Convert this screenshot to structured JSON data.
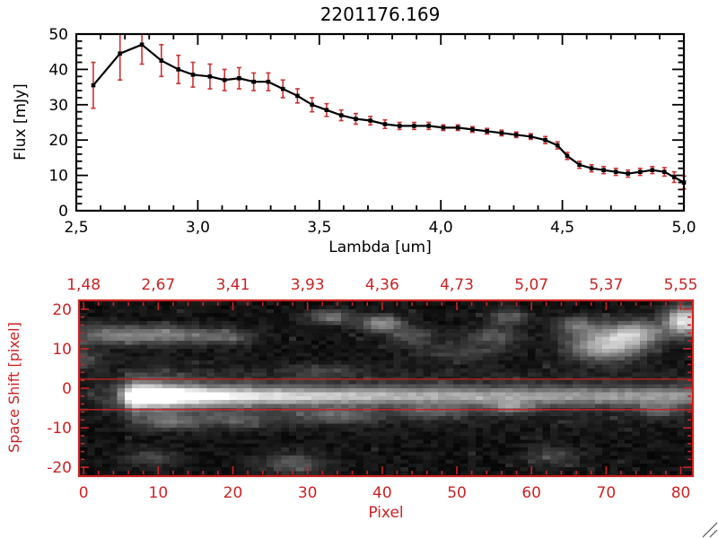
{
  "chart_data": [
    {
      "type": "line",
      "title": "2201176.169",
      "xlabel": "Lambda [um]",
      "ylabel": "Flux [mJy]",
      "xlim": [
        2.5,
        5.0
      ],
      "ylim": [
        0,
        50
      ],
      "xtick_values": [
        2.5,
        3.0,
        3.5,
        4.0,
        4.5,
        5.0
      ],
      "xtick_labels": [
        "2,5",
        "3,0",
        "3,5",
        "4,0",
        "4,5",
        "5,0"
      ],
      "ytick_values": [
        0,
        10,
        20,
        30,
        40,
        50
      ],
      "ytick_labels": [
        "0",
        "10",
        "20",
        "30",
        "40",
        "50"
      ],
      "line_color": "#000000",
      "marker": "square",
      "error_color": "#cc3333",
      "x": [
        2.57,
        2.68,
        2.77,
        2.85,
        2.92,
        2.98,
        3.05,
        3.11,
        3.17,
        3.23,
        3.29,
        3.35,
        3.41,
        3.47,
        3.53,
        3.59,
        3.65,
        3.71,
        3.77,
        3.83,
        3.89,
        3.95,
        4.01,
        4.07,
        4.13,
        4.19,
        4.25,
        4.31,
        4.37,
        4.43,
        4.48,
        4.52,
        4.57,
        4.62,
        4.67,
        4.72,
        4.77,
        4.82,
        4.87,
        4.92,
        4.96,
        5.0
      ],
      "y": [
        35.5,
        44.5,
        47,
        42.5,
        40,
        38.5,
        38,
        37,
        37.5,
        36.5,
        36.5,
        34.5,
        32.5,
        30,
        28.5,
        27,
        26,
        25.5,
        24.5,
        24,
        24,
        24,
        23.5,
        23.5,
        23,
        22.5,
        22,
        21.5,
        21,
        20,
        18.5,
        15.5,
        13,
        12,
        11.5,
        11,
        10.5,
        11,
        11.5,
        11,
        9.5,
        8
      ],
      "yerr": [
        6.5,
        7.5,
        5.5,
        4.5,
        4,
        3.5,
        3.5,
        3,
        3,
        2.5,
        2.5,
        2.5,
        2,
        2,
        1.8,
        1.5,
        1.5,
        1.2,
        1.2,
        1,
        1,
        1,
        0.8,
        0.8,
        0.8,
        0.8,
        0.8,
        0.8,
        0.8,
        1,
        1,
        1,
        1,
        1,
        1,
        1,
        1,
        1,
        1,
        1.2,
        1.5,
        1.8
      ]
    },
    {
      "type": "heatmap",
      "xlabel": "Pixel",
      "ylabel": "Space Shift [pixel]",
      "axis_color": "#cc2222",
      "xlim": [
        0,
        81
      ],
      "ylim": [
        -22,
        22
      ],
      "xtick_values": [
        0,
        10,
        20,
        30,
        40,
        50,
        60,
        70,
        80
      ],
      "xtick_labels": [
        "0",
        "10",
        "20",
        "30",
        "40",
        "50",
        "60",
        "70",
        "80"
      ],
      "ytick_values": [
        20,
        10,
        0,
        -10,
        -20
      ],
      "ytick_labels": [
        "20",
        "10",
        "0",
        "-10",
        "-20"
      ],
      "top_labels": [
        "1,48",
        "2,67",
        "3,41",
        "3,93",
        "4,36",
        "4,73",
        "5,07",
        "5,37",
        "5,55"
      ],
      "aperture_v": [
        2.3,
        -5.4
      ],
      "noise_seed": 20117,
      "noise_floor": 0.02,
      "noise_amp": 0.1,
      "trace": {
        "x_start": 4.5,
        "ramp": 2.5,
        "v_center": -2,
        "sigma": 1.5,
        "base": 0.4,
        "peak": 0.62,
        "decay": 20,
        "halo": 0.3,
        "halo_sigma_mult": 2.8
      },
      "blobs": [
        [
          3,
          13.5,
          4,
          1.8,
          0.35
        ],
        [
          11,
          13.5,
          4,
          1.6,
          0.4
        ],
        [
          19,
          13,
          3,
          1.5,
          0.28
        ],
        [
          33,
          18,
          2,
          1.3,
          0.4
        ],
        [
          40,
          16.5,
          2,
          1.4,
          0.5
        ],
        [
          44,
          13,
          2.5,
          1.6,
          0.25
        ],
        [
          50,
          9,
          4,
          1.4,
          0.18
        ],
        [
          55,
          13,
          2.5,
          1.8,
          0.28
        ],
        [
          57,
          18,
          2,
          1.4,
          0.3
        ],
        [
          70,
          11,
          3.5,
          2.8,
          0.65
        ],
        [
          74,
          14,
          2.5,
          2.2,
          0.55
        ],
        [
          80.5,
          17,
          1.8,
          2.5,
          0.85
        ],
        [
          66,
          16,
          2,
          1.5,
          0.35
        ],
        [
          12,
          -8.5,
          3,
          1.4,
          0.28
        ],
        [
          21,
          -8,
          3,
          1.4,
          0.22
        ],
        [
          34,
          -7,
          4,
          1.5,
          0.26
        ],
        [
          47,
          -6,
          3,
          1.3,
          0.22
        ],
        [
          57,
          -4.8,
          1.8,
          1.1,
          0.4
        ],
        [
          28,
          -19,
          3,
          1.8,
          0.3
        ],
        [
          9,
          -17.5,
          2.5,
          1.6,
          0.2
        ],
        [
          63,
          -17,
          2.5,
          1.8,
          0.2
        ],
        [
          77,
          -5.5,
          2,
          1.4,
          0.25
        ],
        [
          32,
          4.5,
          3,
          1.1,
          0.18
        ],
        [
          0,
          7,
          2,
          1.8,
          0.25
        ],
        [
          8,
          -2,
          4.5,
          3,
          0.3
        ],
        [
          7.5,
          -1.8,
          0.7,
          0.35,
          -0.95
        ]
      ]
    }
  ]
}
